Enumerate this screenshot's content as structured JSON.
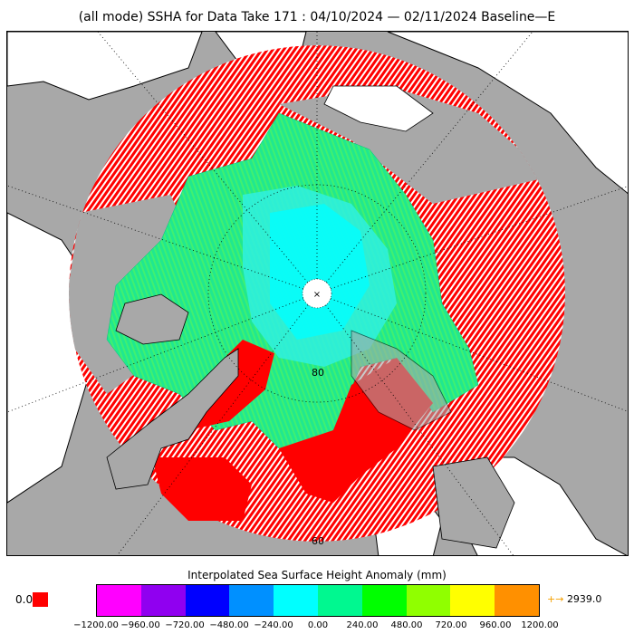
{
  "title": "(all mode) SSHA for Data Take 171 : 04/10/2024 — 02/11/2024 Baseline—E",
  "map": {
    "projection": "north-polar-stereographic",
    "lat_labels": [
      "80",
      "60"
    ],
    "pole_label": "×",
    "colors": {
      "ocean": "#a8a8a8",
      "land": "#ffffff",
      "coast": "#000000",
      "track_red": "#ff0000",
      "ice_green": "#20e890",
      "ice_cyan": "#00ffff"
    }
  },
  "legend": {
    "title": "Interpolated Sea Surface Height Anomaly (mm)",
    "zero_label": "0.0",
    "zero_color": "#ff0000",
    "colors": [
      "#ff00ff",
      "#9000f0",
      "#0000ff",
      "#0090ff",
      "#00ffff",
      "#00f890",
      "#00ff00",
      "#90ff00",
      "#ffff00",
      "#ff9000"
    ],
    "ticks": [
      "−1200.00",
      "−960.00",
      "−720.00",
      "−480.00",
      "−240.00",
      "0.00",
      "240.00",
      "480.00",
      "720.00",
      "960.00",
      "1200.00"
    ],
    "max_arrow": "→",
    "max_value": "2939.0"
  }
}
